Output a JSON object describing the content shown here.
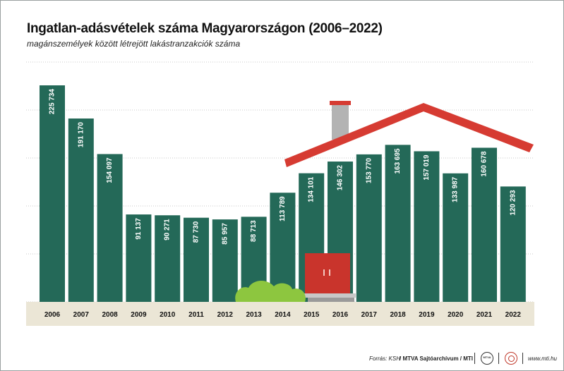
{
  "header": {
    "title": "Ingatlan-adásvételek száma Magyarországon (2006–2022)",
    "subtitle": "magánszemélyek között létrejött lakástranzakciók száma"
  },
  "footer": {
    "source": "Forrás: KSH",
    "credit": "/ MTVA Sajtóarchívum / MTI",
    "site": "www.mti.hu"
  },
  "colors": {
    "bar": "#246958",
    "bar_label": "#ffffff",
    "axis_band": "#ebe6d6",
    "roof": "#d63b32",
    "chimney": "#b3b3b3",
    "door": "#c9342c",
    "bush": "#8dc63f",
    "grid": "#c9c9c9"
  },
  "chart_data": {
    "type": "bar",
    "title": "Ingatlan-adásvételek száma Magyarországon (2006–2022)",
    "subtitle": "magánszemélyek között létrejött lakástranzakciók száma",
    "categories": [
      "2006",
      "2007",
      "2008",
      "2009",
      "2010",
      "2011",
      "2012",
      "2013",
      "2014",
      "2015",
      "2016",
      "2017",
      "2018",
      "2019",
      "2020",
      "2021",
      "2022"
    ],
    "values": [
      225734,
      191170,
      154097,
      91137,
      90271,
      87730,
      85957,
      88713,
      113789,
      134101,
      146302,
      153770,
      163695,
      157019,
      133987,
      160678,
      120293
    ],
    "value_labels": [
      "225 734",
      "191 170",
      "154 097",
      "91 137",
      "90 271",
      "87 730",
      "85 957",
      "88 713",
      "113 789",
      "134 101",
      "146 302",
      "153 770",
      "163 695",
      "157 019",
      "133 987",
      "160 678",
      "120 293"
    ],
    "ylim": [
      0,
      250000
    ],
    "xlabel": "",
    "ylabel": "",
    "grid": true
  }
}
